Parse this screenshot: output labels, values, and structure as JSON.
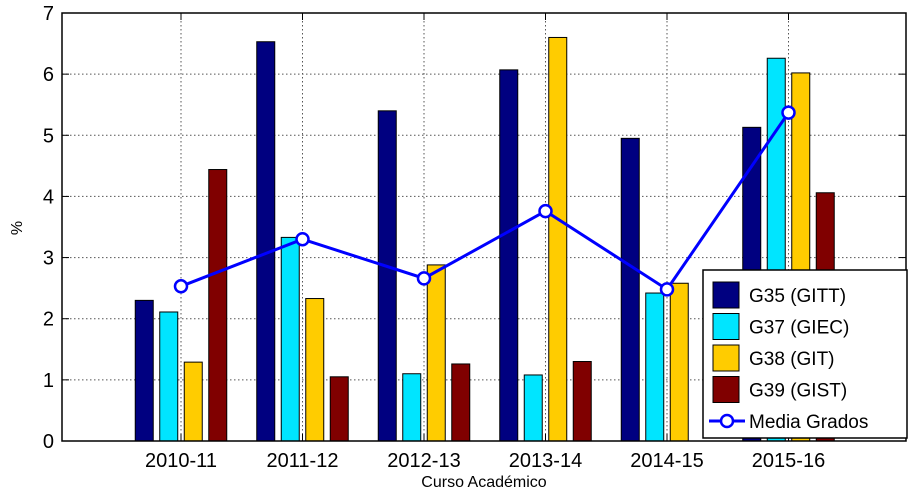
{
  "chart_data": {
    "type": "bar",
    "title": "",
    "xlabel": "Curso Académico",
    "ylabel": "%",
    "ylim": [
      0,
      7
    ],
    "yticks": [
      "0",
      "1",
      "2",
      "3",
      "4",
      "5",
      "6",
      "7"
    ],
    "grid": true,
    "legend_position": "bottom-right",
    "categories": [
      "2010-11",
      "2011-12",
      "2012-13",
      "2013-14",
      "2014-15",
      "2015-16"
    ],
    "series": [
      {
        "name": "G35 (GITT)",
        "type": "bar",
        "color": "#000080",
        "values": [
          2.3,
          6.53,
          5.4,
          6.07,
          4.95,
          5.13
        ]
      },
      {
        "name": "G37 (GIEC)",
        "type": "bar",
        "color": "#00e5ff",
        "values": [
          2.11,
          3.33,
          1.1,
          1.08,
          2.42,
          6.26
        ]
      },
      {
        "name": "G38 (GIT)",
        "type": "bar",
        "color": "#ffcc00",
        "values": [
          1.29,
          2.33,
          2.88,
          6.6,
          2.58,
          6.02
        ]
      },
      {
        "name": "G39 (GIST)",
        "type": "bar",
        "color": "#800000",
        "values": [
          4.44,
          1.05,
          1.26,
          1.3,
          null,
          4.06
        ]
      },
      {
        "name": "Media Grados",
        "type": "line",
        "color": "#0000ff",
        "values": [
          2.53,
          3.3,
          2.66,
          3.76,
          2.48,
          5.37
        ]
      }
    ]
  }
}
